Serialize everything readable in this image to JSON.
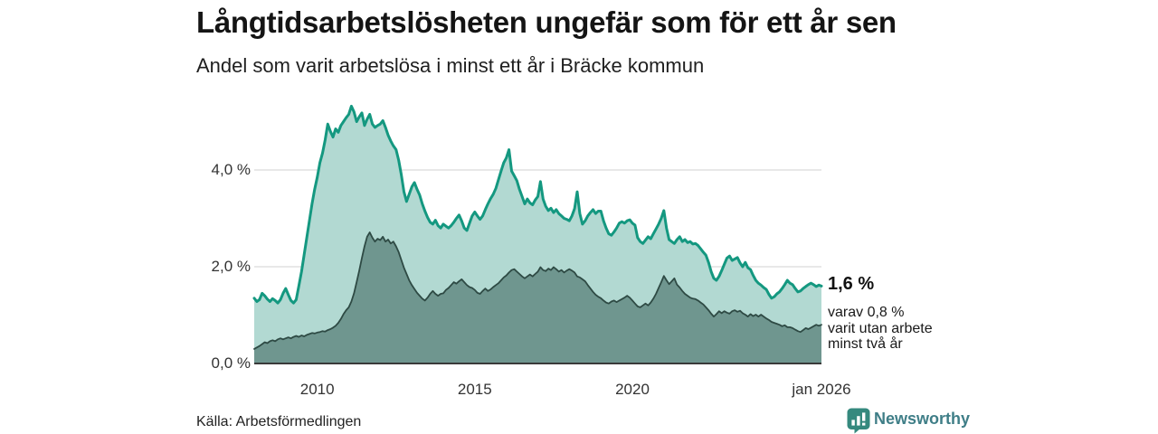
{
  "header": {
    "title": "Långtidsarbetslösheten ungefär som för ett år sen",
    "subtitle": "Andel som varit arbetslösa i minst ett år i Bräcke kommun"
  },
  "footer": {
    "source": "Källa: Arbetsförmedlingen",
    "brand_name": "Newsworthy",
    "brand_icon": "bar-chart-speech-bubble-icon"
  },
  "colors": {
    "background": "#ffffff",
    "total_line": "#149880",
    "total_fill": "#b2d9d2",
    "sub_line": "#2e4a44",
    "sub_fill": "#6f968f",
    "gridline": "#d9d9d9",
    "axis_line": "#3a3a3a",
    "text_dark": "#141414",
    "tick_text": "#333333",
    "brand_teal": "#35897e",
    "brand_wordmark": "#3f7e87"
  },
  "chart_data": {
    "type": "area",
    "title": "Långtidsarbetslösheten ungefär som för ett år sen",
    "subtitle": "Andel som varit arbetslösa i minst ett år i Bräcke kommun",
    "unit": "%",
    "frequency": "monthly",
    "x_range": [
      "jan 2008",
      "jan 2026"
    ],
    "ylim": [
      0,
      5.5
    ],
    "grid": true,
    "legend_position": "none",
    "y_ticks": [
      {
        "value": 0,
        "label": "0,0 %"
      },
      {
        "value": 2,
        "label": "2,0 %"
      },
      {
        "value": 4,
        "label": "4,0 %"
      }
    ],
    "x_ticks": [
      {
        "year": 2010,
        "label": "2010"
      },
      {
        "year": 2015,
        "label": "2015"
      },
      {
        "year": 2020,
        "label": "2020"
      },
      {
        "year": 2026,
        "label": "jan 2026"
      }
    ],
    "annotation": {
      "value_label": "1,6 %",
      "detail_lines": [
        "varav 0,8 %",
        "varit utan arbete",
        "minst två år"
      ],
      "latest_total_pct": 1.6,
      "latest_two_year_pct": 0.8
    },
    "series": [
      {
        "name": "Andel arbetslösa minst ett år",
        "values": [
          1.35,
          1.28,
          1.32,
          1.45,
          1.4,
          1.33,
          1.28,
          1.34,
          1.3,
          1.25,
          1.32,
          1.45,
          1.55,
          1.42,
          1.3,
          1.25,
          1.32,
          1.6,
          1.9,
          2.25,
          2.6,
          2.95,
          3.3,
          3.6,
          3.85,
          4.15,
          4.35,
          4.62,
          4.95,
          4.8,
          4.68,
          4.85,
          4.78,
          4.92,
          5.0,
          5.08,
          5.15,
          5.32,
          5.2,
          5.0,
          5.1,
          5.18,
          4.92,
          5.05,
          5.15,
          4.95,
          4.88,
          4.92,
          4.95,
          5.02,
          4.88,
          4.72,
          4.6,
          4.5,
          4.42,
          4.2,
          3.9,
          3.55,
          3.35,
          3.5,
          3.65,
          3.74,
          3.6,
          3.48,
          3.3,
          3.15,
          3.02,
          2.92,
          2.88,
          2.96,
          2.85,
          2.8,
          2.88,
          2.84,
          2.8,
          2.85,
          2.92,
          3.0,
          3.07,
          2.95,
          2.8,
          2.75,
          2.9,
          3.05,
          3.13,
          3.05,
          2.98,
          3.05,
          3.18,
          3.3,
          3.41,
          3.5,
          3.62,
          3.8,
          3.98,
          4.15,
          4.25,
          4.42,
          3.98,
          3.88,
          3.78,
          3.6,
          3.45,
          3.3,
          3.4,
          3.32,
          3.28,
          3.38,
          3.45,
          3.76,
          3.4,
          3.25,
          3.16,
          3.21,
          3.12,
          3.18,
          3.1,
          3.05,
          3.0,
          2.98,
          2.95,
          3.05,
          3.2,
          3.55,
          3.1,
          2.88,
          2.95,
          3.05,
          3.12,
          3.18,
          3.1,
          3.15,
          3.15,
          2.95,
          2.8,
          2.68,
          2.65,
          2.72,
          2.8,
          2.9,
          2.93,
          2.9,
          2.95,
          2.97,
          2.9,
          2.86,
          2.6,
          2.52,
          2.48,
          2.55,
          2.62,
          2.58,
          2.68,
          2.78,
          2.88,
          3.0,
          3.16,
          2.8,
          2.56,
          2.52,
          2.48,
          2.56,
          2.62,
          2.52,
          2.56,
          2.5,
          2.52,
          2.47,
          2.48,
          2.44,
          2.37,
          2.3,
          2.24,
          2.09,
          1.9,
          1.76,
          1.72,
          1.8,
          1.92,
          2.05,
          2.18,
          2.22,
          2.13,
          2.16,
          2.19,
          2.08,
          2.0,
          2.09,
          1.98,
          1.94,
          1.82,
          1.72,
          1.66,
          1.62,
          1.57,
          1.53,
          1.43,
          1.35,
          1.38,
          1.44,
          1.48,
          1.55,
          1.63,
          1.72,
          1.66,
          1.63,
          1.55,
          1.48,
          1.5,
          1.55,
          1.59,
          1.63,
          1.66,
          1.63,
          1.59,
          1.62,
          1.6
        ]
      },
      {
        "name": "varav utan arbete minst två år",
        "values": [
          0.3,
          0.33,
          0.36,
          0.4,
          0.44,
          0.42,
          0.46,
          0.48,
          0.46,
          0.5,
          0.52,
          0.5,
          0.52,
          0.54,
          0.52,
          0.55,
          0.57,
          0.55,
          0.58,
          0.56,
          0.59,
          0.61,
          0.63,
          0.62,
          0.64,
          0.65,
          0.67,
          0.66,
          0.69,
          0.71,
          0.74,
          0.78,
          0.84,
          0.92,
          1.02,
          1.1,
          1.16,
          1.28,
          1.45,
          1.68,
          1.92,
          2.18,
          2.42,
          2.62,
          2.71,
          2.6,
          2.52,
          2.58,
          2.55,
          2.62,
          2.52,
          2.56,
          2.48,
          2.52,
          2.42,
          2.3,
          2.14,
          1.98,
          1.85,
          1.72,
          1.62,
          1.54,
          1.46,
          1.4,
          1.34,
          1.3,
          1.36,
          1.44,
          1.5,
          1.44,
          1.4,
          1.44,
          1.45,
          1.52,
          1.56,
          1.62,
          1.68,
          1.65,
          1.7,
          1.74,
          1.68,
          1.62,
          1.58,
          1.56,
          1.52,
          1.46,
          1.44,
          1.5,
          1.55,
          1.5,
          1.53,
          1.58,
          1.62,
          1.66,
          1.72,
          1.78,
          1.82,
          1.88,
          1.93,
          1.95,
          1.9,
          1.85,
          1.8,
          1.76,
          1.8,
          1.84,
          1.8,
          1.85,
          1.9,
          1.99,
          1.93,
          1.91,
          1.96,
          1.93,
          1.99,
          1.95,
          1.9,
          1.93,
          1.88,
          1.92,
          1.95,
          1.92,
          1.88,
          1.8,
          1.78,
          1.74,
          1.7,
          1.62,
          1.55,
          1.48,
          1.42,
          1.38,
          1.35,
          1.3,
          1.26,
          1.24,
          1.28,
          1.3,
          1.27,
          1.3,
          1.33,
          1.36,
          1.4,
          1.36,
          1.3,
          1.24,
          1.18,
          1.16,
          1.2,
          1.24,
          1.2,
          1.26,
          1.34,
          1.44,
          1.56,
          1.68,
          1.81,
          1.72,
          1.64,
          1.7,
          1.76,
          1.63,
          1.57,
          1.5,
          1.44,
          1.4,
          1.36,
          1.34,
          1.33,
          1.3,
          1.26,
          1.22,
          1.16,
          1.1,
          1.03,
          0.97,
          1.02,
          1.08,
          1.04,
          1.08,
          1.05,
          1.03,
          1.08,
          1.1,
          1.07,
          1.09,
          1.04,
          1.01,
          0.97,
          1.02,
          0.98,
          1.01,
          0.97,
          1.01,
          0.97,
          0.93,
          0.9,
          0.86,
          0.84,
          0.82,
          0.8,
          0.77,
          0.79,
          0.75,
          0.75,
          0.73,
          0.7,
          0.67,
          0.65,
          0.69,
          0.73,
          0.71,
          0.74,
          0.77,
          0.8,
          0.78,
          0.8
        ]
      }
    ]
  }
}
